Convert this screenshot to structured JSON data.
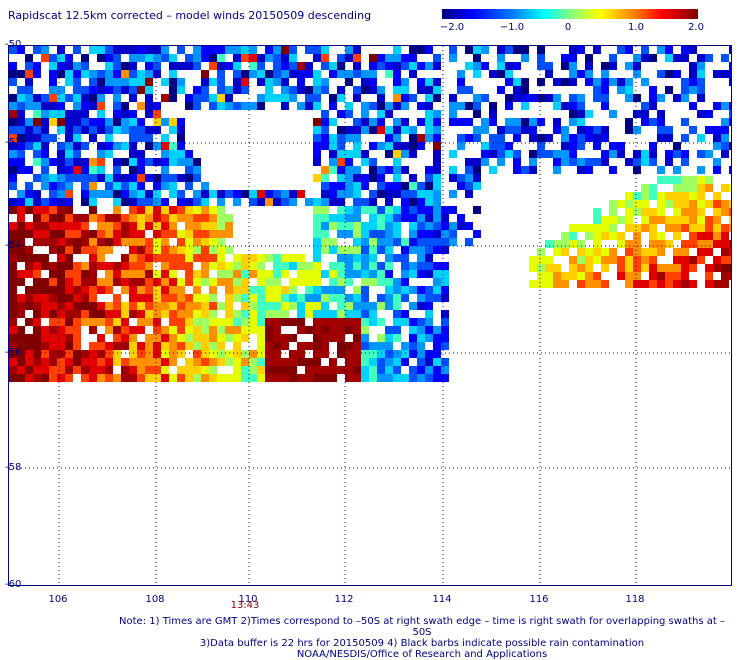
{
  "title": "Rapidscat 12.5km corrected – model winds 20150509 descending",
  "colorbar": {
    "labels": [
      "−2.0",
      "−1.0",
      "0",
      "1.0",
      "2.0"
    ],
    "range": [
      -2.0,
      2.0
    ]
  },
  "y_ticks": [
    "-50",
    "-52",
    "-54",
    "-56",
    "-58",
    "-60"
  ],
  "x_ticks": [
    "106",
    "108",
    "110",
    "112",
    "114",
    "116",
    "118"
  ],
  "time_label": "13:43",
  "note": {
    "line1": "Note: 1) Times are GMT 2)Times correspond to –50S at right swath edge – time is right swath for overlapping swaths at –50S",
    "line2": "3)Data buffer is 22 hrs for 20150509 4) Black barbs indicate possible rain contamination",
    "line3": "NOAA/NESDIS/Office of Research and Applications"
  }
}
